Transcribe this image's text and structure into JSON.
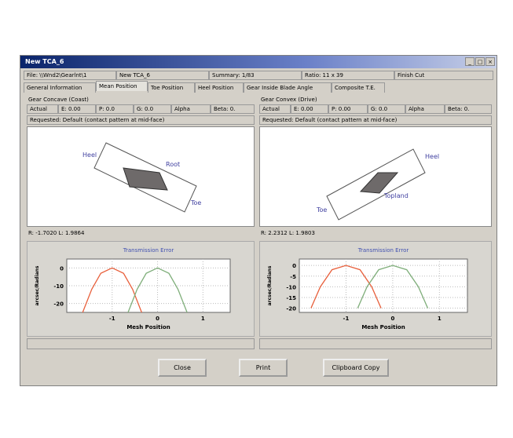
{
  "window": {
    "title": "New TCA_6",
    "controls": [
      "_",
      "□",
      "×"
    ]
  },
  "status": [
    "File: \\\\Wnd2\\Gearlnt\\1",
    "New TCA_6",
    "Summary: 1/83",
    "Ratio: 11 x 39",
    "Finish Cut"
  ],
  "tabs": [
    "General Information",
    "Mean Position",
    "Toe Position",
    "Heel Position",
    "Gear Inside Blade Angle",
    "Composite T.E."
  ],
  "panels": [
    {
      "group": "Gear Concave (Coast)",
      "fields": [
        "Actual",
        "E: 0.00",
        "P: 0.0",
        "G: 0.0",
        "Alpha",
        "Beta: 0."
      ],
      "requested": "Requested: Default (contact pattern at mid-face)",
      "labels": [
        "Heel",
        "Root",
        "Toe"
      ],
      "readout": "R: -1.7020 L: 1.9864"
    },
    {
      "group": "Gear Convex (Drive)",
      "fields": [
        "Actual",
        "E: 0.00",
        "P: 0.00",
        "G: 0.0",
        "Alpha",
        "Beta: 0."
      ],
      "requested": "Requested: Default (contact pattern at mid-face)",
      "labels": [
        "Heel",
        "Toe",
        "Topland"
      ],
      "readout": "R: 2.2312 L: 1.9803"
    }
  ],
  "buttons": [
    "Close",
    "Print",
    "Clipboard Copy"
  ],
  "chart_data": [
    {
      "type": "line",
      "title": "Transmission Error",
      "x_label": "Mesh Position",
      "y_label": "arcsec/Radians",
      "xlim": [
        -2,
        1.6
      ],
      "xticks": [
        -1,
        0,
        1
      ],
      "ylim": [
        -25,
        5
      ],
      "yticks": [
        0,
        -10,
        -20
      ],
      "grid": true,
      "series": [
        {
          "color": "#e8603c",
          "x": [
            -1.65,
            -1.45,
            -1.25,
            -1.0,
            -0.75,
            -0.55,
            -0.35
          ],
          "values": [
            -25,
            -12,
            -3,
            0,
            -3,
            -12,
            -25
          ]
        },
        {
          "color": "#7fae7a",
          "x": [
            -0.65,
            -0.45,
            -0.25,
            0.0,
            0.25,
            0.45,
            0.65
          ],
          "values": [
            -25,
            -12,
            -3,
            0,
            -3,
            -12,
            -25
          ]
        }
      ]
    },
    {
      "type": "line",
      "title": "Transmission Error",
      "x_label": "Mesh Position",
      "y_label": "arcsec/Radians",
      "xlim": [
        -2,
        1.6
      ],
      "xticks": [
        -1,
        0,
        1
      ],
      "ylim": [
        -22,
        3
      ],
      "yticks": [
        0,
        -5,
        -10,
        -15,
        -20
      ],
      "grid": true,
      "series": [
        {
          "color": "#e8603c",
          "x": [
            -1.75,
            -1.55,
            -1.3,
            -1.0,
            -0.7,
            -0.45,
            -0.25
          ],
          "values": [
            -20,
            -10,
            -2,
            0,
            -2,
            -10,
            -20
          ]
        },
        {
          "color": "#7fae7a",
          "x": [
            -0.75,
            -0.55,
            -0.3,
            0.0,
            0.3,
            0.55,
            0.75
          ],
          "values": [
            -20,
            -10,
            -2,
            0,
            -2,
            -10,
            -20
          ]
        }
      ]
    }
  ]
}
